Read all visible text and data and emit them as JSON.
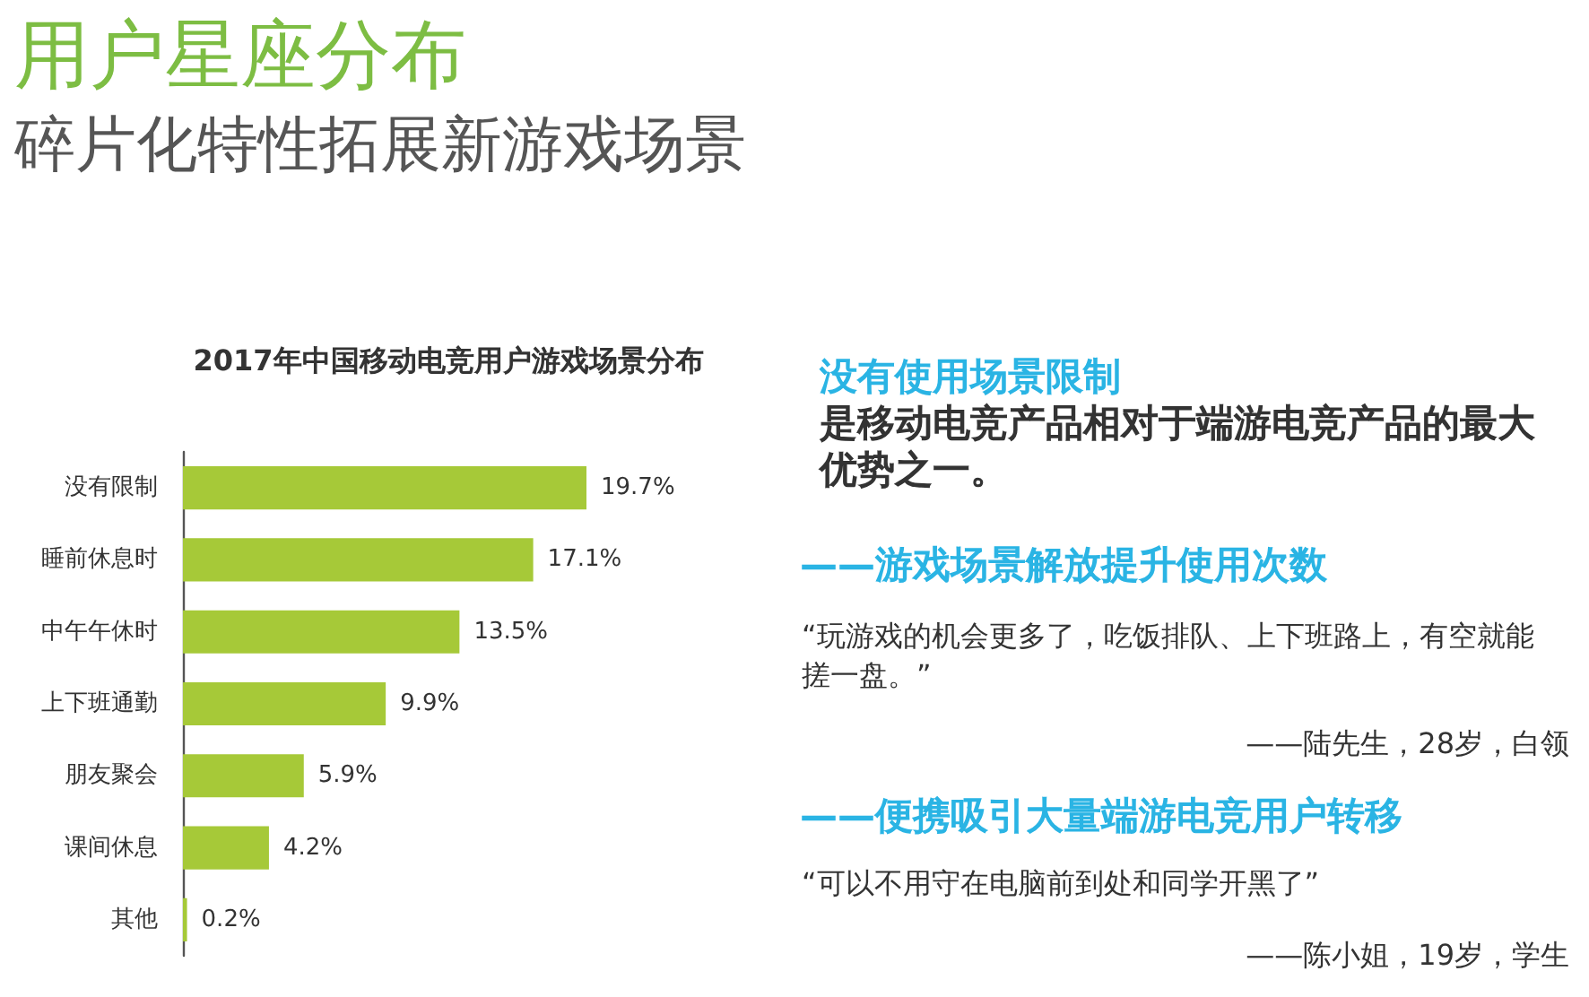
{
  "chart_data": {
    "type": "bar",
    "orientation": "horizontal",
    "title": "2017年中国移动电竞用户游戏场景分布",
    "categories": [
      "没有限制",
      "睡前休息时",
      "中午午休时",
      "上下班通勤",
      "朋友聚会",
      "课间休息",
      "其他"
    ],
    "values": [
      19.7,
      17.1,
      13.5,
      9.9,
      5.9,
      4.2,
      0.2
    ],
    "value_labels": [
      "19.7%",
      "17.1%",
      "13.5%",
      "9.9%",
      "5.9%",
      "4.2%",
      "0.2%"
    ],
    "color": "#a6c938",
    "annotations": [
      "用户星座分布",
      "碎片化特性拓展新游戏场景",
      "没有使用场景限制",
      "是移动电竞产品相对于端游电竞产品的最大优势之一。",
      "——游戏场景解放提升使用次数",
      "“玩游戏的机会更多了，吃饭排队、上下班路上，有空就能搓一盘。”",
      "——陆先生，28岁，白领",
      "——便携吸引大量端游电竞用户转移",
      "“可以不用守在电脑前到处和同学开黑了”",
      "——陈小姐，19岁，学生"
    ]
  }
}
